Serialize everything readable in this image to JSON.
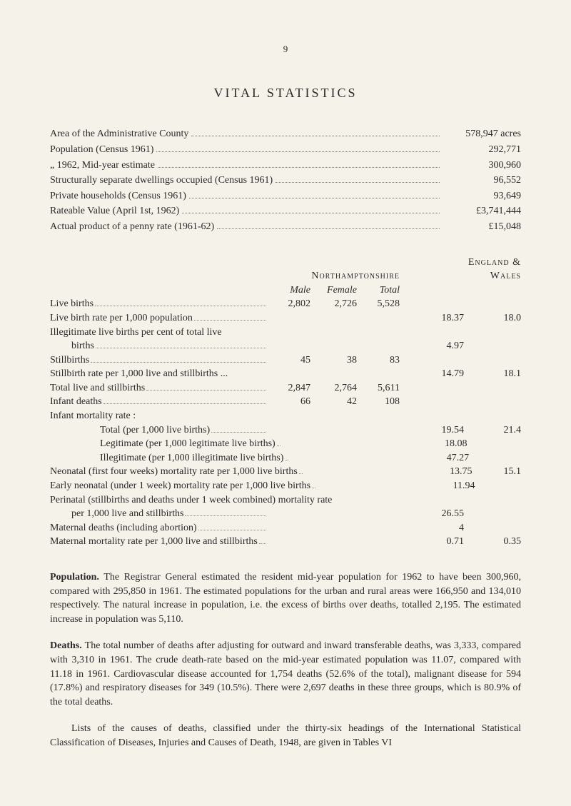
{
  "page_number": "9",
  "title": "VITAL STATISTICS",
  "county_stats": [
    {
      "label": "Area of the Administrative County",
      "value": "578,947 acres"
    },
    {
      "label": "Population (Census 1961)",
      "value": "292,771"
    },
    {
      "label": "„        1962, Mid-year estimate",
      "value": "300,960"
    },
    {
      "label": "Structurally separate dwellings occupied (Census 1961)",
      "value": "96,552"
    },
    {
      "label": "Private households (Census 1961)",
      "value": "93,649"
    },
    {
      "label": "Rateable Value (April 1st, 1962)",
      "value": "£3,741,444"
    },
    {
      "label": "Actual product of a penny rate (1961-62)",
      "value": "£15,048"
    }
  ],
  "region_header": "Northamptonshire",
  "ew_header_top": "England &",
  "ew_header_bot": "Wales",
  "col_headers": {
    "male": "Male",
    "female": "Female",
    "total": "Total"
  },
  "vital_rows": [
    {
      "label": "Live births",
      "indent": 0,
      "male": "2,802",
      "female": "2,726",
      "total": "5,528",
      "north": "",
      "wales": "",
      "dots": true
    },
    {
      "label": "Live birth rate per 1,000 population",
      "indent": 0,
      "male": "",
      "female": "",
      "total": "",
      "north": "18.37",
      "wales": "18.0",
      "dots": true
    },
    {
      "label": "Illegitimate live births per cent of total live",
      "indent": 0,
      "male": "",
      "female": "",
      "total": "",
      "north": "",
      "wales": "",
      "dots": false
    },
    {
      "label": "births",
      "indent": 1,
      "male": "",
      "female": "",
      "total": "",
      "north": "4.97",
      "wales": "",
      "dots": true
    },
    {
      "label": "Stillbirths",
      "indent": 0,
      "male": "45",
      "female": "38",
      "total": "83",
      "north": "",
      "wales": "",
      "dots": true
    },
    {
      "label": "Stillbirth rate per 1,000 live and stillbirths  ...",
      "indent": 0,
      "male": "",
      "female": "",
      "total": "",
      "north": "14.79",
      "wales": "18.1",
      "dots": false
    },
    {
      "label": "Total live and stillbirths",
      "indent": 0,
      "male": "2,847",
      "female": "2,764",
      "total": "5,611",
      "north": "",
      "wales": "",
      "dots": true
    },
    {
      "label": "Infant deaths",
      "indent": 0,
      "male": "66",
      "female": "42",
      "total": "108",
      "north": "",
      "wales": "",
      "dots": true
    },
    {
      "label": "Infant mortality rate :",
      "indent": 0,
      "male": "",
      "female": "",
      "total": "",
      "north": "",
      "wales": "",
      "dots": false
    },
    {
      "label": "Total (per 1,000 live births)",
      "indent": 2,
      "male": "",
      "female": "",
      "total": "",
      "north": "19.54",
      "wales": "21.4",
      "dots": true
    },
    {
      "label": "Legitimate (per 1,000 legitimate live births)",
      "indent": 2,
      "male": "",
      "female": "",
      "total": "",
      "north": "18.08",
      "wales": "",
      "dots": true
    },
    {
      "label": "Illegitimate (per 1,000 illegitimate live births)",
      "indent": 2,
      "male": "",
      "female": "",
      "total": "",
      "north": "47.27",
      "wales": "",
      "dots": true
    },
    {
      "label": "Neonatal (first four weeks) mortality rate per 1,000 live births",
      "indent": 0,
      "male": "",
      "female": "",
      "total": "",
      "north": "13.75",
      "wales": "15.1",
      "dots": true
    },
    {
      "label": "Early neonatal (under 1 week) mortality rate per 1,000 live births",
      "indent": 0,
      "male": "",
      "female": "",
      "total": "",
      "north": "11.94",
      "wales": "",
      "dots": true
    },
    {
      "label": "Perinatal (stillbirths and deaths under 1 week combined) mortality rate",
      "indent": 0,
      "male": "",
      "female": "",
      "total": "",
      "north": "",
      "wales": "",
      "dots": false
    },
    {
      "label": "per 1,000 live and stillbirths",
      "indent": 1,
      "male": "",
      "female": "",
      "total": "",
      "north": "26.55",
      "wales": "",
      "dots": true
    },
    {
      "label": "Maternal deaths (including abortion)",
      "indent": 0,
      "male": "",
      "female": "",
      "total": "",
      "north": "4",
      "wales": "",
      "dots": true
    },
    {
      "label": "Maternal mortality rate per 1,000 live and stillbirths",
      "indent": 0,
      "male": "",
      "female": "",
      "total": "",
      "north": "0.71",
      "wales": "0.35",
      "dots": true
    }
  ],
  "paragraphs": [
    {
      "title": "Population.",
      "text": "The Registrar General estimated the resident mid-year population for 1962 to have been 300,960, compared with 295,850 in 1961. The estimated populations for the urban and rural areas were 166,950 and 134,010 respectively. The natural increase in population, i.e. the excess of births over deaths, totalled 2,195. The estimated increase in population was 5,110."
    },
    {
      "title": "Deaths.",
      "text": "The total number of deaths after adjusting for outward and inward transferable deaths, was 3,333, compared with 3,310 in 1961. The crude death-rate based on the mid-year estimated population was 11.07, compared with 11.18 in 1961. Cardiovascular disease accounted for 1,754 deaths (52.6% of the total), malignant disease for 594 (17.8%) and respiratory diseases for 349 (10.5%). There were 2,697 deaths in these three groups, which is 80.9% of the total deaths."
    },
    {
      "title": "",
      "text": "Lists of the causes of deaths, classified under the thirty-six headings of the International Statistical Classification of Diseases, Injuries and Causes of Death, 1948, are given in Tables VI"
    }
  ]
}
